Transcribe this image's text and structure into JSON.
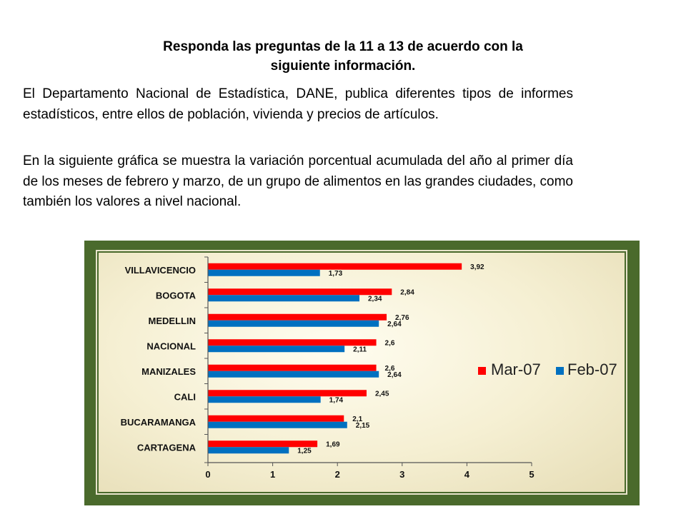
{
  "heading": {
    "line1": "Responda las preguntas de la 11 a 13 de acuerdo con la",
    "line2": "siguiente información."
  },
  "paragraphs": {
    "p1": "El Departamento Nacional de Estadística, DANE, publica diferentes tipos de informes estadísticos, entre ellos de población, vivienda y precios de artículos.",
    "p2": "En la siguiente gráfica se muestra la variación porcentual acumulada del año al primer día de los meses de febrero y marzo, de un grupo de alimentos en las grandes ciudades, como también los valores a nivel nacional."
  },
  "colors": {
    "mar": "#ff0000",
    "feb": "#0070c0",
    "frame": "#4a6a2c"
  },
  "chart_data": {
    "type": "bar",
    "orientation": "horizontal",
    "categories": [
      "VILLAVICENCIO",
      "BOGOTA",
      "MEDELLIN",
      "NACIONAL",
      "MANIZALES",
      "CALI",
      "BUCARAMANGA",
      "CARTAGENA"
    ],
    "series": [
      {
        "name": "Mar-07",
        "values": [
          3.92,
          2.84,
          2.76,
          2.6,
          2.6,
          2.45,
          2.1,
          1.69
        ],
        "labels": [
          "3,92",
          "2,84",
          "2,76",
          "2,6",
          "2,6",
          "2,45",
          "2,1",
          "1,69"
        ]
      },
      {
        "name": "Feb-07",
        "values": [
          1.73,
          2.34,
          2.64,
          2.11,
          2.64,
          1.74,
          2.15,
          1.25
        ],
        "labels": [
          "1,73",
          "2,34",
          "2,64",
          "2,11",
          "2,64",
          "1,74",
          "2,15",
          "1,25"
        ]
      }
    ],
    "xlim": [
      0,
      5
    ],
    "xticks": [
      "0",
      "1",
      "2",
      "3",
      "4",
      "5"
    ],
    "grid": false,
    "legend": "right"
  }
}
